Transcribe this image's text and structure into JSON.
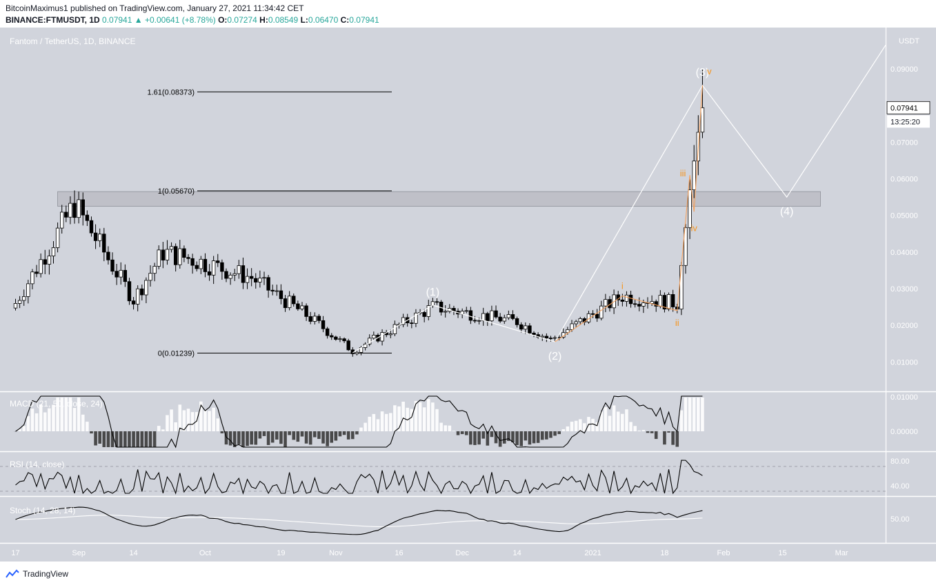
{
  "header": {
    "published": "BitcoinMaximus1 published on TradingView.com, January 27, 2021 11:34:42 CET",
    "symbol": "BINANCE:FTMUSDT, 1D",
    "last": "0.07941",
    "change_arrow": "▲",
    "change": "+0.00641 (+8.78%)",
    "o_label": "O:",
    "o": "0.07274",
    "h_label": "H:",
    "h": "0.08549",
    "l_label": "L:",
    "l": "0.06470",
    "c_label": "C:",
    "c": "0.07941"
  },
  "footer": {
    "brand": "TradingView"
  },
  "colors": {
    "pane_bg": "#d1d4dc",
    "up_candle": "#ffffff",
    "down_candle": "#000000",
    "wave_line": "#ffffff",
    "subwave_line": "#f5a15c",
    "wave_label": "#ffffff",
    "subwave_label": "#f7931a",
    "resistance_zone": "#b8bac1",
    "last_price_bg": "#ffffff"
  },
  "chart_data": {
    "type": "candlestick",
    "title": "Fantom / TetherUS, 1D, BINANCE",
    "price_axis": {
      "unit": "USDT",
      "ticks": [
        "0.09000",
        "0.08000",
        "0.07000",
        "0.06000",
        "0.05000",
        "0.04000",
        "0.03000",
        "0.02000",
        "0.01000"
      ],
      "range": [
        0.005,
        0.1
      ],
      "last_price_label": "0.07941",
      "countdown": "13:25:20"
    },
    "time_axis": {
      "ticks": [
        "17",
        "Sep",
        "14",
        "Oct",
        "19",
        "Nov",
        "16",
        "Dec",
        "14",
        "2021",
        "18",
        "Feb",
        "15",
        "Mar"
      ]
    },
    "key_closes": [
      {
        "date": "2020-08-17",
        "close": 0.026
      },
      {
        "date": "2020-08-31",
        "close": 0.053
      },
      {
        "date": "2020-09-14",
        "close": 0.027
      },
      {
        "date": "2020-09-21",
        "close": 0.04
      },
      {
        "date": "2020-09-28",
        "close": 0.038
      },
      {
        "date": "2020-10-12",
        "close": 0.033
      },
      {
        "date": "2020-10-26",
        "close": 0.022
      },
      {
        "date": "2020-11-05",
        "close": 0.013
      },
      {
        "date": "2020-11-24",
        "close": 0.025
      },
      {
        "date": "2020-12-14",
        "close": 0.021
      },
      {
        "date": "2020-12-22",
        "close": 0.016
      },
      {
        "date": "2021-01-08",
        "close": 0.028
      },
      {
        "date": "2021-01-21",
        "close": 0.026
      },
      {
        "date": "2021-01-24",
        "close": 0.057
      },
      {
        "date": "2021-01-26",
        "close": 0.0727
      },
      {
        "date": "2021-01-27",
        "close": 0.07941
      }
    ],
    "fib_levels": [
      {
        "label": "1.61(0.08373)",
        "value": 0.08373
      },
      {
        "label": "1(0.05670)",
        "value": 0.0567
      },
      {
        "label": "0(0.01239)",
        "value": 0.01239
      }
    ],
    "resistance_zone": [
      0.0525,
      0.0565
    ],
    "main_waves": [
      {
        "label": "(1)",
        "date": "2020-11-24",
        "value": 0.0255
      },
      {
        "label": "(2)",
        "date": "2020-12-23",
        "value": 0.0155
      },
      {
        "label": "(3)",
        "date": "2021-01-27",
        "value": 0.0855
      },
      {
        "label": "(4)",
        "date": "2021-02-16",
        "value": 0.055
      }
    ],
    "sub_waves": [
      {
        "label": "i",
        "date": "2021-01-08",
        "value": 0.028
      },
      {
        "label": "ii",
        "date": "2021-01-21",
        "value": 0.024
      },
      {
        "label": "iii",
        "date": "2021-01-24",
        "value": 0.061
      },
      {
        "label": "iv",
        "date": "2021-01-25",
        "value": 0.051
      },
      {
        "label": "v",
        "date": "2021-01-27",
        "value": 0.0855
      }
    ],
    "indicators": {
      "macd": {
        "label": "MACD (21, 50, close, 24)",
        "ticks": [
          "0.01000",
          "0.00000"
        ]
      },
      "rsi": {
        "label": "RSI (14, close)",
        "ticks": [
          "80.00",
          "40.00"
        ]
      },
      "stoch": {
        "label": "Stoch (14, 28, 14)",
        "ticks": [
          "50.00"
        ]
      }
    }
  }
}
